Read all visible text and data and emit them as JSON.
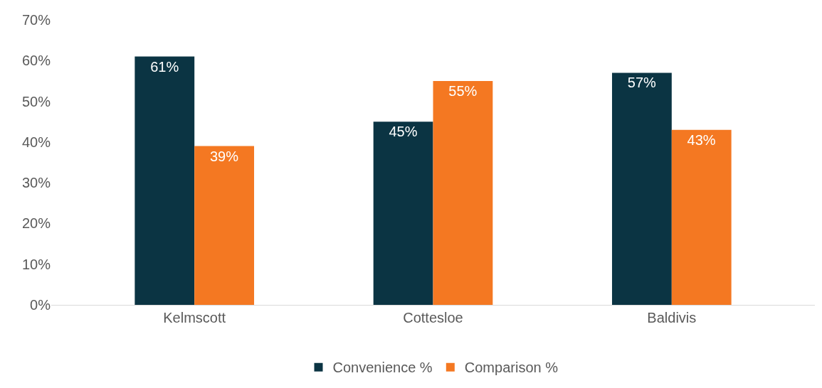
{
  "chart_data": {
    "type": "bar",
    "categories": [
      "Kelmscott",
      "Cottesloe",
      "Baldivis"
    ],
    "series": [
      {
        "name": "Convenience %",
        "color": "#0b3443",
        "values": [
          61,
          45,
          57
        ],
        "value_labels": [
          "61%",
          "45%",
          "57%"
        ]
      },
      {
        "name": "Comparison %",
        "color": "#f47822",
        "values": [
          39,
          55,
          43
        ],
        "value_labels": [
          "39%",
          "55%",
          "43%"
        ]
      }
    ],
    "ylim": [
      0,
      70
    ],
    "yticks": [
      {
        "value": 0,
        "label": "0%"
      },
      {
        "value": 10,
        "label": "10%"
      },
      {
        "value": 20,
        "label": "20%"
      },
      {
        "value": 30,
        "label": "30%"
      },
      {
        "value": 40,
        "label": "40%"
      },
      {
        "value": 50,
        "label": "50%"
      },
      {
        "value": 60,
        "label": "60%"
      },
      {
        "value": 70,
        "label": "70%"
      }
    ],
    "grid": false,
    "legend": "bottom"
  }
}
